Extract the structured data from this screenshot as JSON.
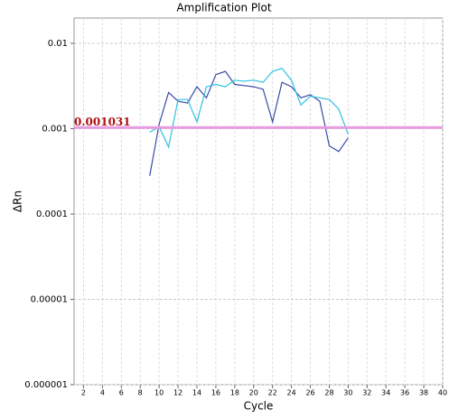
{
  "chart_data": {
    "type": "line",
    "title": "Amplification Plot",
    "xlabel": "Cycle",
    "ylabel": "ΔRn",
    "x": [
      9,
      10,
      11,
      12,
      13,
      14,
      15,
      16,
      17,
      18,
      19,
      20,
      21,
      22,
      23,
      24,
      25,
      26,
      27,
      28,
      29,
      30
    ],
    "series": [
      {
        "color": "#3a4aa8",
        "values": [
          0.00028,
          0.00113,
          0.00266,
          0.0021,
          0.002,
          0.0031,
          0.0023,
          0.0043,
          0.0047,
          0.0033,
          0.0032,
          0.0031,
          0.0029,
          0.0012,
          0.0035,
          0.0031,
          0.0023,
          0.0025,
          0.0021,
          0.00063,
          0.00054,
          0.00078
        ]
      },
      {
        "color": "#2fc0e0",
        "values": [
          0.00091,
          0.00105,
          0.00061,
          0.0022,
          0.0022,
          0.0012,
          0.0031,
          0.0033,
          0.0031,
          0.0037,
          0.0036,
          0.0037,
          0.0035,
          0.0047,
          0.0051,
          0.0037,
          0.0019,
          0.0024,
          0.0023,
          0.0022,
          0.0017,
          0.00086
        ]
      }
    ],
    "threshold": 0.001031,
    "threshold_color": "#e79be0",
    "threshold_label_color": "#b01010",
    "log_y": true,
    "grid": true,
    "xlim": [
      1,
      40
    ],
    "xticks": [
      2,
      4,
      6,
      8,
      10,
      12,
      14,
      16,
      18,
      20,
      22,
      24,
      26,
      28,
      30,
      32,
      34,
      36,
      38,
      40
    ],
    "ylim": [
      1e-06,
      0.0198
    ],
    "yticks": [
      1e-06,
      1e-05,
      0.0001,
      0.001,
      0.01
    ]
  }
}
